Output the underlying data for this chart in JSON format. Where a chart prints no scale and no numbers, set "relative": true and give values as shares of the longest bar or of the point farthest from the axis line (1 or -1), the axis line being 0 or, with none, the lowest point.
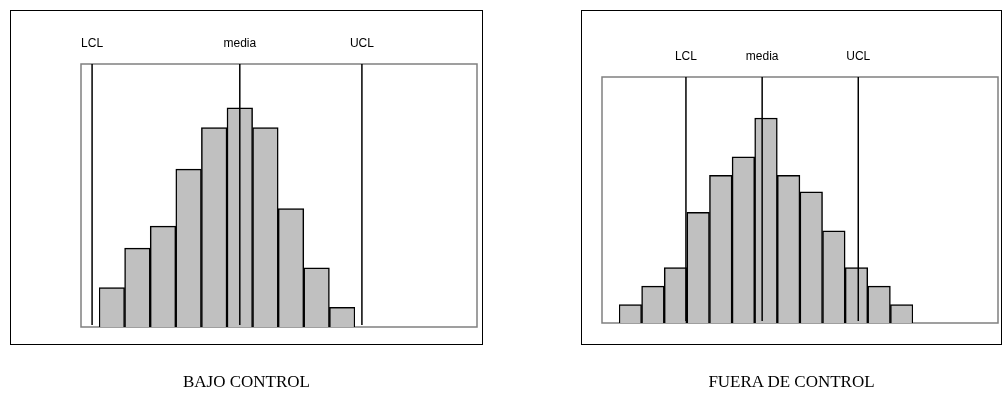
{
  "chart_data": [
    {
      "type": "bar",
      "title": "BAJO CONTROL",
      "relative": true,
      "categories": [
        null,
        null,
        null,
        null,
        null,
        null,
        null,
        null,
        null,
        null
      ],
      "color": "#c0c0c0",
      "grid": false,
      "tick_labels": false,
      "legend": false,
      "values": [
        0.18,
        0.36,
        0.46,
        0.72,
        0.91,
        1,
        0.91,
        0.54,
        0.27,
        0.09
      ],
      "annotations": [
        "LCL",
        "media",
        "UCL"
      ]
    },
    {
      "type": "bar",
      "title": "FUERA DE CONTROL",
      "relative": true,
      "categories": [
        null,
        null,
        null,
        null,
        null,
        null,
        null,
        null,
        null,
        null,
        null,
        null,
        null
      ],
      "color": "#c0c0c0",
      "grid": false,
      "tick_labels": false,
      "legend": false,
      "values": [
        0.09,
        0.18,
        0.27,
        0.54,
        0.72,
        0.81,
        1,
        0.72,
        0.64,
        0.45,
        0.27,
        0.18,
        0.09
      ],
      "annotations": [
        "LCL",
        "media",
        "UCL"
      ]
    }
  ]
}
